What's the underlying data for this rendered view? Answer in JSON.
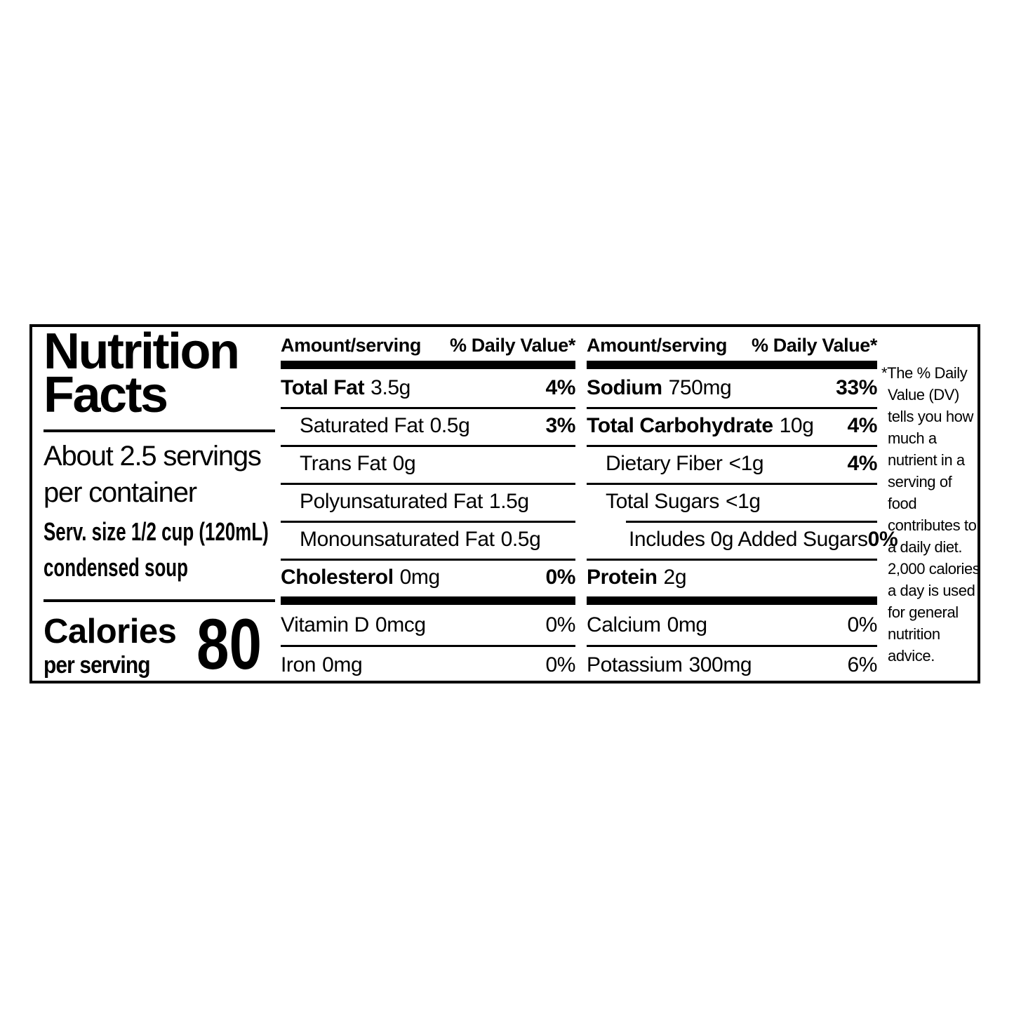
{
  "label": {
    "title_lines": [
      "Nutrition",
      "Facts"
    ],
    "servings_per_container": [
      "About 2.5 servings",
      "per container"
    ],
    "serving_size_lines": [
      "Serv. size 1/2 cup (120mL)",
      "condensed soup"
    ],
    "calories": {
      "label": "Calories",
      "sublabel": "per serving",
      "value": "80"
    },
    "col_header": {
      "amount": "Amount/serving",
      "daily_value": "% Daily Value*"
    },
    "nutrient_columns": [
      {
        "rows": [
          {
            "name": "Total Fat",
            "amount": "3.5g",
            "dv": "4%"
          },
          {
            "name": "Saturated Fat",
            "amount": "0.5g",
            "dv": "3%"
          },
          {
            "name": "Trans Fat",
            "amount": "0g",
            "dv": ""
          },
          {
            "name": "Polyunsaturated Fat",
            "amount": "1.5g",
            "dv": ""
          },
          {
            "name": "Monounsaturated Fat",
            "amount": "0.5g",
            "dv": ""
          },
          {
            "name": "Cholesterol",
            "amount": "0mg",
            "dv": "0%"
          },
          {
            "name": "Vitamin D",
            "amount": "0mcg",
            "dv": "0%"
          },
          {
            "name": "Iron",
            "amount": "0mg",
            "dv": "0%"
          }
        ]
      },
      {
        "rows": [
          {
            "name": "Sodium",
            "amount": "750mg",
            "dv": "33%"
          },
          {
            "name": "Total Carbohydrate",
            "amount": "10g",
            "dv": "4%"
          },
          {
            "name": "Dietary Fiber",
            "amount": "<1g",
            "dv": "4%"
          },
          {
            "name": "Total Sugars",
            "amount": "<1g",
            "dv": ""
          },
          {
            "name": "Includes 0g Added Sugars",
            "amount": "",
            "dv": "0%"
          },
          {
            "name": "Protein",
            "amount": "2g",
            "dv": ""
          },
          {
            "name": "Calcium",
            "amount": "0mg",
            "dv": "0%"
          },
          {
            "name": "Potassium",
            "amount": "300mg",
            "dv": "6%"
          }
        ]
      }
    ],
    "footnote_text": "*The % Daily\nValue (DV)\ntells you how\nmuch a\nnutrient in a\nserving of food\ncontributes to\na daily diet.\n2,000 calories\na day is used\nfor general\nnutrition\nadvice.",
    "colors": {
      "ink": "#000000",
      "paper": "#ffffff"
    }
  }
}
